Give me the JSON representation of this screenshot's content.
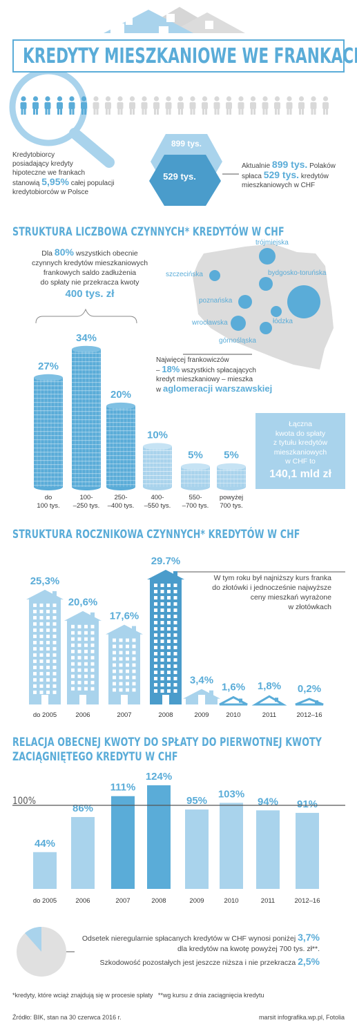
{
  "header": {
    "title": "KREDYTY MIESZKANIOWE WE FRANKACH"
  },
  "intro": {
    "left_text_1": "Kredytobiorcy",
    "left_text_2": "posiadający kredyty",
    "left_text_3": "hipoteczne we frankach",
    "left_text_4a": "stanowią ",
    "left_highlight": "5,95%",
    "left_text_4b": " całej populacji",
    "left_text_5": "kredytobiorców w Polsce",
    "hex_top": "899 tys.",
    "hex_bottom": "529 tys.",
    "right_text_1a": "Aktualnie ",
    "right_highlight_1": "899 tys.",
    "right_text_1b": " Polaków",
    "right_text_2a": "spłaca ",
    "right_highlight_2": "529 tys.",
    "right_text_2b": " kredytów",
    "right_text_3": "mieszkaniowych w CHF"
  },
  "section1": {
    "title": "STRUKTURA LICZBOWA CZYNNYCH* KREDYTÓW W CHF",
    "note_1a": "Dla ",
    "note_highlight": "80%",
    "note_1b": " wszystkich obecnie",
    "note_2": "czynnych kredytów mieszkaniowych",
    "note_3": "frankowych saldo zadłużenia",
    "note_4": "do spłaty nie przekracza kwoty",
    "note_amount": "400 tys. zł",
    "map_labels": [
      "trójmiejska",
      "szczecińska",
      "bydgosko-toruńska",
      "poznańska",
      "wrocławska",
      "łódzka",
      "górnośląska"
    ],
    "map_note_1": "Najwięcej frankowiczów",
    "map_note_2a": "– ",
    "map_note_highlight": "18%",
    "map_note_2b": " wszystkich spłacających",
    "map_note_3": "kredyt mieszkaniowy – mieszka",
    "map_note_4a": "w ",
    "map_note_4b": "aglomeracji warszawskiej",
    "box_1": "Łączna",
    "box_2": "kwota do spłaty",
    "box_3": "z tytułu kredytów",
    "box_4": "mieszkaniowych",
    "box_5": "w CHF to",
    "box_amount": "140,1 mld zł"
  },
  "section2": {
    "title": "STRUKTURA ROCZNIKOWA CZYNNYCH* KREDYTÓW W CHF",
    "note_1": "W tym roku był najniższy kurs franka",
    "note_2": "do złotówki i jednocześnie najwyższe",
    "note_3": "ceny mieszkań wyrażone",
    "note_4": "w złotówkach"
  },
  "section3": {
    "title_1": "RELACJA OBECNEJ KWOTY DO SPŁATY DO PIERWOTNEJ KWOTY",
    "title_2": "ZACIĄGNIĘTEGO KREDYTU W CHF",
    "ref_label": "100%"
  },
  "footnote_box": {
    "line_1a": "Odsetek nieregularnie spłacanych kredytów w CHF wynosi poniżej ",
    "line_1_highlight": "3,7%",
    "line_2": "dla kredytów na kwotę powyżej 700 tys. zł**.",
    "line_3a": "Szkodowość pozostałych jest jeszcze niższa i nie przekracza ",
    "line_3_highlight": "2,5%"
  },
  "footer": {
    "notes": "*kredyty, które wciąż znajdują się w procesie spłaty   **wg kursu z dnia zaciągnięcia kredytu",
    "source": "Źródło: BIK, stan na 30 czerwca 2016 r.",
    "credit": "marsit infografika.wp.pl, Fotolia"
  },
  "colors": {
    "accent": "#5aacd8",
    "light": "#a9d3ec",
    "dark": "#4a9ccb",
    "grey": "#d9d9d9"
  },
  "chart_data": [
    {
      "type": "bar",
      "title": "STRUKTURA LICZBOWA CZYNNYCH* KREDYTÓW W CHF",
      "categories": [
        "do 100 tys.",
        "100–250 tys.",
        "250–400 tys.",
        "400–550 tys.",
        "550–700 tys.",
        "powyżej 700 tys."
      ],
      "category_lines": [
        [
          "do",
          "100 tys."
        ],
        [
          "100-",
          "–250 tys."
        ],
        [
          "250-",
          "–400 tys."
        ],
        [
          "400-",
          "–550 tys."
        ],
        [
          "550-",
          "–700 tys."
        ],
        [
          "powyżej",
          "700 tys."
        ]
      ],
      "labels": [
        "27%",
        "34%",
        "20%",
        "10%",
        "5%",
        "5%"
      ],
      "values": [
        27,
        34,
        20,
        10,
        5,
        5
      ],
      "ylim": [
        0,
        34
      ]
    },
    {
      "type": "bar",
      "title": "STRUKTURA ROCZNIKOWA CZYNNYCH* KREDYTÓW W CHF",
      "categories": [
        "do 2005",
        "2006",
        "2007",
        "2008",
        "2009",
        "2010",
        "2011",
        "2012–16"
      ],
      "labels": [
        "25,3%",
        "20,6%",
        "17,6%",
        "29.7%",
        "3,4%",
        "1,6%",
        "1,8%",
        "0,2%"
      ],
      "values": [
        25.3,
        20.6,
        17.6,
        29.7,
        3.4,
        1.6,
        1.8,
        0.2
      ],
      "ylim": [
        0,
        29.7
      ]
    },
    {
      "type": "bar",
      "title": "RELACJA OBECNEJ KWOTY DO SPŁATY DO PIERWOTNEJ KWOTY ZACIĄGNIĘTEGO KREDYTU W CHF",
      "categories": [
        "do 2005",
        "2006",
        "2007",
        "2008",
        "2009",
        "2010",
        "2011",
        "2012–16"
      ],
      "labels": [
        "44%",
        "86%",
        "111%",
        "124%",
        "95%",
        "103%",
        "94%",
        "91%"
      ],
      "values": [
        44,
        86,
        111,
        124,
        95,
        103,
        94,
        91
      ],
      "reference": 100,
      "ylim": [
        0,
        124
      ]
    }
  ]
}
